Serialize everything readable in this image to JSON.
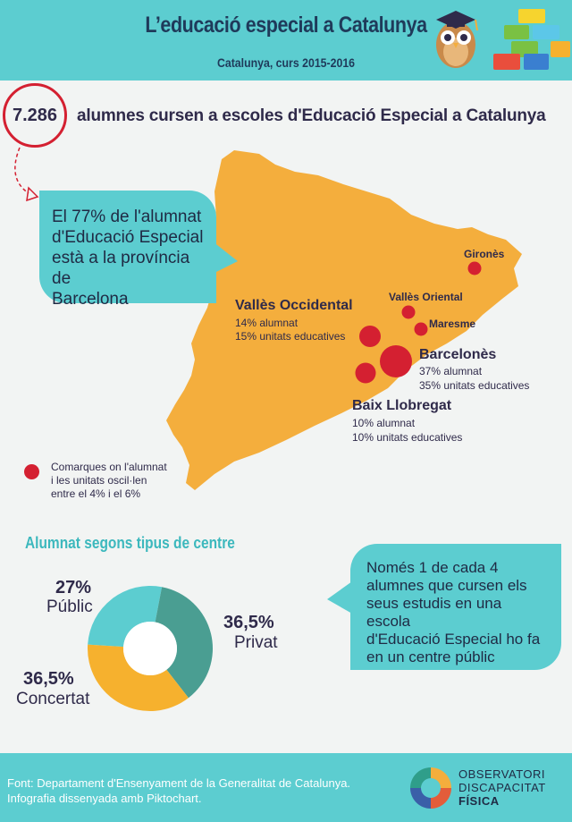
{
  "header": {
    "title": "L’educació especial a Catalunya",
    "subtitle": "Catalunya, curs 2015-2016"
  },
  "headline": {
    "count": "7.286",
    "text": "alumnes cursen a escoles d'Educació Especial a Catalunya"
  },
  "callout_barcelona": {
    "lines": [
      "El 77% de l'alumnat",
      "d'Educació Especial",
      "està a la província de",
      "Barcelona"
    ]
  },
  "regions": {
    "girones": {
      "name": "Gironès"
    },
    "valles_oriental": {
      "name": "Vallès Oriental"
    },
    "maresme": {
      "name": "Maresme"
    },
    "valles_occidental": {
      "name": "Vallès Occidental",
      "alumnat": "14% alumnat",
      "unitats": "15% unitats educatives"
    },
    "barcelones": {
      "name": "Barcelonès",
      "alumnat": "37% alumnat",
      "unitats": "35% unitats educatives"
    },
    "baix_llobregat": {
      "name": "Baix Llobregat",
      "alumnat": "10% alumnat",
      "unitats": "10% unitats educatives"
    }
  },
  "legend": {
    "lines": [
      "Comarques on l'alumnat",
      "i les unitats oscil·len",
      "entre el 4% i el 6%"
    ]
  },
  "centre_types": {
    "title": "Alumnat segons tipus de centre",
    "public": {
      "pct": "27%",
      "label": "Públic"
    },
    "privat": {
      "pct": "36,5%",
      "label": "Privat"
    },
    "concertat": {
      "pct": "36,5%",
      "label": "Concertat"
    }
  },
  "chart_data": {
    "type": "pie",
    "categories": [
      "Públic",
      "Privat",
      "Concertat"
    ],
    "values": [
      27,
      36.5,
      36.5
    ],
    "colors": [
      "#5ccdd0",
      "#4a9e92",
      "#f6b12e"
    ],
    "title": "Alumnat segons tipus de centre"
  },
  "callout_public": {
    "lines": [
      "Només 1 de cada 4",
      "alumnes que cursen els",
      "seus estudis en una escola",
      "d'Educació Especial ho fa",
      "en un centre públic"
    ]
  },
  "footer": {
    "source_lines": [
      "Font: Departament d'Ensenyament de la Generalitat de Catalunya.",
      "Infografia dissenyada amb Piktochart."
    ],
    "brand": [
      "OBSERVATORI",
      "DISCAPACITAT",
      "FÍSICA"
    ]
  },
  "colors": {
    "accent": "#5ccdd0",
    "map": "#f4ae3d",
    "marker": "#d42031",
    "text": "#2f2a4a"
  }
}
